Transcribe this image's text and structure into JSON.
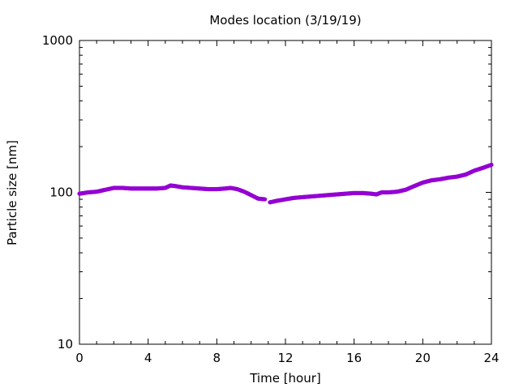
{
  "chart_data": {
    "type": "scatter",
    "title": "Modes location (3/19/19)",
    "xlabel": "Time [hour]",
    "ylabel": "Particle size [nm]",
    "xlim": [
      0,
      24
    ],
    "ylim": [
      10,
      1000
    ],
    "yscale": "log",
    "grid": false,
    "legend": "none",
    "x_ticks": [
      0,
      4,
      8,
      12,
      16,
      20,
      24
    ],
    "x_tick_labels": [
      "0",
      "4",
      "8",
      "12",
      "16",
      "20",
      "24"
    ],
    "y_ticks": [
      10,
      100,
      1000
    ],
    "y_tick_labels": [
      "10",
      "100",
      "1000"
    ],
    "marker_color": "#9400d3",
    "series": [
      {
        "segments": [
          [
            [
              0.0,
              98
            ],
            [
              0.5,
              100
            ],
            [
              1.0,
              101
            ],
            [
              1.5,
              104
            ],
            [
              2.0,
              107
            ],
            [
              2.5,
              107
            ],
            [
              3.0,
              106
            ],
            [
              3.5,
              106
            ],
            [
              4.0,
              106
            ],
            [
              4.5,
              106
            ],
            [
              5.0,
              107
            ],
            [
              5.3,
              111
            ],
            [
              5.6,
              110
            ],
            [
              6.0,
              108
            ],
            [
              6.5,
              107
            ],
            [
              7.0,
              106
            ],
            [
              7.5,
              105
            ],
            [
              8.0,
              105
            ],
            [
              8.5,
              106
            ],
            [
              8.8,
              107
            ],
            [
              9.2,
              105
            ],
            [
              9.6,
              101
            ],
            [
              10.0,
              96
            ],
            [
              10.4,
              91
            ],
            [
              10.8,
              90
            ]
          ],
          [
            [
              11.1,
              86
            ],
            [
              11.5,
              88
            ],
            [
              12.0,
              90
            ],
            [
              12.5,
              92
            ],
            [
              13.0,
              93
            ],
            [
              13.5,
              94
            ],
            [
              14.0,
              95
            ],
            [
              14.5,
              96
            ],
            [
              15.0,
              97
            ],
            [
              15.5,
              98
            ],
            [
              16.0,
              99
            ],
            [
              16.5,
              99
            ],
            [
              17.0,
              98
            ],
            [
              17.3,
              97
            ],
            [
              17.6,
              100
            ],
            [
              18.0,
              100
            ],
            [
              18.5,
              101
            ],
            [
              19.0,
              104
            ],
            [
              19.5,
              110
            ],
            [
              20.0,
              116
            ],
            [
              20.5,
              120
            ],
            [
              21.0,
              122
            ],
            [
              21.5,
              125
            ],
            [
              22.0,
              127
            ],
            [
              22.5,
              131
            ],
            [
              23.0,
              139
            ],
            [
              23.5,
              145
            ],
            [
              24.0,
              152
            ]
          ]
        ]
      }
    ]
  }
}
